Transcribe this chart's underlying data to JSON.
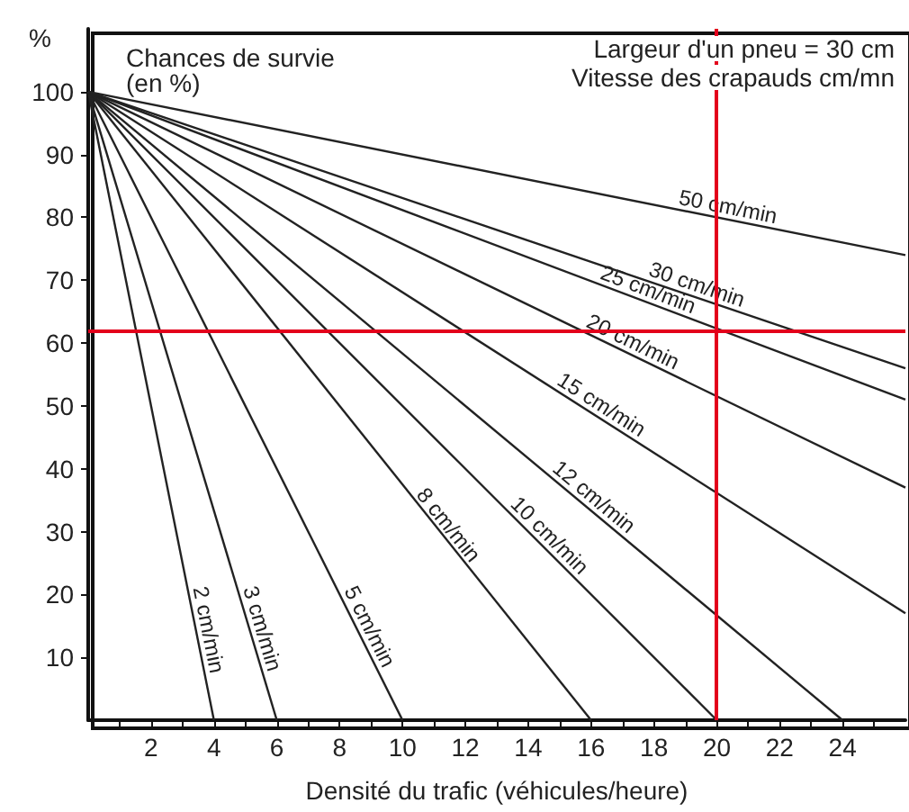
{
  "chart_data": {
    "type": "line",
    "title": "Chances de survie (en %)",
    "xlabel": "Densité du trafic (véhicules/heure)",
    "ylabel": "%",
    "annotations": [
      "Largeur d'un pneu = 30 cm",
      "Vitesse des crapauds cm/mn"
    ],
    "series": [
      {
        "name": "2 cm/min",
        "color": "#222222",
        "x": [
          0,
          4
        ],
        "values": [
          100,
          0
        ]
      },
      {
        "name": "3 cm/min",
        "color": "#222222",
        "x": [
          0,
          6
        ],
        "values": [
          100,
          0
        ]
      },
      {
        "name": "5 cm/min",
        "color": "#222222",
        "x": [
          0,
          10
        ],
        "values": [
          100,
          0
        ]
      },
      {
        "name": "8 cm/min",
        "color": "#222222",
        "x": [
          0,
          16
        ],
        "values": [
          100,
          0
        ]
      },
      {
        "name": "10 cm/min",
        "color": "#222222",
        "x": [
          0,
          20
        ],
        "values": [
          100,
          0
        ]
      },
      {
        "name": "12 cm/min",
        "color": "#222222",
        "x": [
          0,
          24
        ],
        "values": [
          100,
          0
        ]
      },
      {
        "name": "15 cm/min",
        "color": "#222222",
        "x": [
          0,
          26
        ],
        "values": [
          100,
          17
        ]
      },
      {
        "name": "20 cm/min",
        "color": "#222222",
        "x": [
          0,
          26
        ],
        "values": [
          100,
          37
        ]
      },
      {
        "name": "25 cm/min",
        "color": "#222222",
        "x": [
          0,
          26
        ],
        "values": [
          100,
          51
        ]
      },
      {
        "name": "30 cm/min",
        "color": "#222222",
        "x": [
          0,
          26
        ],
        "values": [
          100,
          56
        ]
      },
      {
        "name": "50 cm/min",
        "color": "#222222",
        "x": [
          0,
          26
        ],
        "values": [
          100,
          74
        ]
      }
    ],
    "xlim": [
      0,
      26
    ],
    "ylim": [
      0,
      110
    ],
    "xticks": [
      {
        "value": 1,
        "label": null
      },
      2,
      {
        "value": 3,
        "label": null
      },
      4,
      {
        "value": 5,
        "label": null
      },
      6,
      {
        "value": 7,
        "label": null
      },
      8,
      {
        "value": 9,
        "label": null
      },
      10,
      {
        "value": 11,
        "label": null
      },
      12,
      {
        "value": 13,
        "label": null
      },
      14,
      {
        "value": 15,
        "label": null
      },
      16,
      {
        "value": 17,
        "label": null
      },
      18,
      {
        "value": 19,
        "label": null
      },
      20,
      {
        "value": 21,
        "label": null
      },
      22,
      {
        "value": 23,
        "label": null
      },
      24,
      {
        "value": 25,
        "label": null
      }
    ],
    "yticks": [
      10,
      20,
      30,
      40,
      50,
      60,
      70,
      80,
      90,
      100
    ],
    "ref_lines": [
      {
        "axis": "x",
        "value": 20,
        "color": "#e3001b"
      },
      {
        "axis": "y",
        "value": 62,
        "color": "#e3001b"
      }
    ],
    "grid": false,
    "legend": false,
    "marker": "none",
    "line_style": "solid"
  }
}
